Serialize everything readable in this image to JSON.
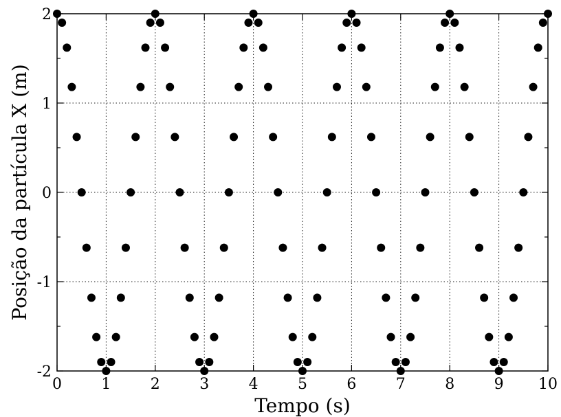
{
  "chart_data": {
    "type": "scatter",
    "title": "",
    "xlabel": "Tempo (s)",
    "ylabel": "Posição da partícula X (m)",
    "xlim": [
      0,
      10
    ],
    "ylim": [
      -2,
      2
    ],
    "xticks": [
      0,
      1,
      2,
      3,
      4,
      5,
      6,
      7,
      8,
      9,
      10
    ],
    "xtick_labels": [
      "0",
      "1",
      "2",
      "3",
      "4",
      "5",
      "6",
      "7",
      "8",
      "9",
      "10"
    ],
    "yticks": [
      -2,
      -1,
      0,
      1,
      2
    ],
    "ytick_labels": [
      "-2",
      "-1",
      "0",
      "1",
      "2"
    ],
    "y_minor_ticks": [
      -1.5,
      -0.5,
      0.5,
      1.5
    ],
    "grid": true,
    "grid_style": "dotted",
    "legend": "none",
    "marker": "filled-circle",
    "marker_color": "#000000",
    "series": [
      {
        "x": [
          0,
          0.1,
          0.2,
          0.3,
          0.4,
          0.5,
          0.6,
          0.7,
          0.8,
          0.9,
          1.0,
          1.1,
          1.2,
          1.3,
          1.4,
          1.5,
          1.6,
          1.7,
          1.8,
          1.9,
          2.0,
          2.1,
          2.2,
          2.3,
          2.4,
          2.5,
          2.6,
          2.7,
          2.8,
          2.9,
          3.0,
          3.1,
          3.2,
          3.3,
          3.4,
          3.5,
          3.6,
          3.7,
          3.8,
          3.9,
          4.0,
          4.1,
          4.2,
          4.3,
          4.4,
          4.5,
          4.6,
          4.7,
          4.8,
          4.9,
          5.0,
          5.1,
          5.2,
          5.3,
          5.4,
          5.5,
          5.6,
          5.7,
          5.8,
          5.9,
          6.0,
          6.1,
          6.2,
          6.3,
          6.4,
          6.5,
          6.6,
          6.7,
          6.8,
          6.9,
          7.0,
          7.1,
          7.2,
          7.3,
          7.4,
          7.5,
          7.6,
          7.7,
          7.8,
          7.9,
          8.0,
          8.1,
          8.2,
          8.3,
          8.4,
          8.5,
          8.6,
          8.7,
          8.8,
          8.9,
          9.0,
          9.1,
          9.2,
          9.3,
          9.4,
          9.5,
          9.6,
          9.7,
          9.8,
          9.9,
          10.0
        ],
        "y": [
          2.0,
          1.9,
          1.62,
          1.18,
          0.62,
          0.0,
          -0.62,
          -1.18,
          -1.62,
          -1.9,
          -2.0,
          -1.9,
          -1.62,
          -1.18,
          -0.62,
          0.0,
          0.62,
          1.18,
          1.62,
          1.9,
          2.0,
          1.9,
          1.62,
          1.18,
          0.62,
          0.0,
          -0.62,
          -1.18,
          -1.62,
          -1.9,
          -2.0,
          -1.9,
          -1.62,
          -1.18,
          -0.62,
          0.0,
          0.62,
          1.18,
          1.62,
          1.9,
          2.0,
          1.9,
          1.62,
          1.18,
          0.62,
          0.0,
          -0.62,
          -1.18,
          -1.62,
          -1.9,
          -2.0,
          -1.9,
          -1.62,
          -1.18,
          -0.62,
          0.0,
          0.62,
          1.18,
          1.62,
          1.9,
          2.0,
          1.9,
          1.62,
          1.18,
          0.62,
          0.0,
          -0.62,
          -1.18,
          -1.62,
          -1.9,
          -2.0,
          -1.9,
          -1.62,
          -1.18,
          -0.62,
          0.0,
          0.62,
          1.18,
          1.62,
          1.9,
          2.0,
          1.9,
          1.62,
          1.18,
          0.62,
          0.0,
          -0.62,
          -1.18,
          -1.62,
          -1.9,
          -2.0,
          -1.9,
          -1.62,
          -1.18,
          -0.62,
          0.0,
          0.62,
          1.18,
          1.62,
          1.9,
          2.0
        ]
      }
    ]
  }
}
